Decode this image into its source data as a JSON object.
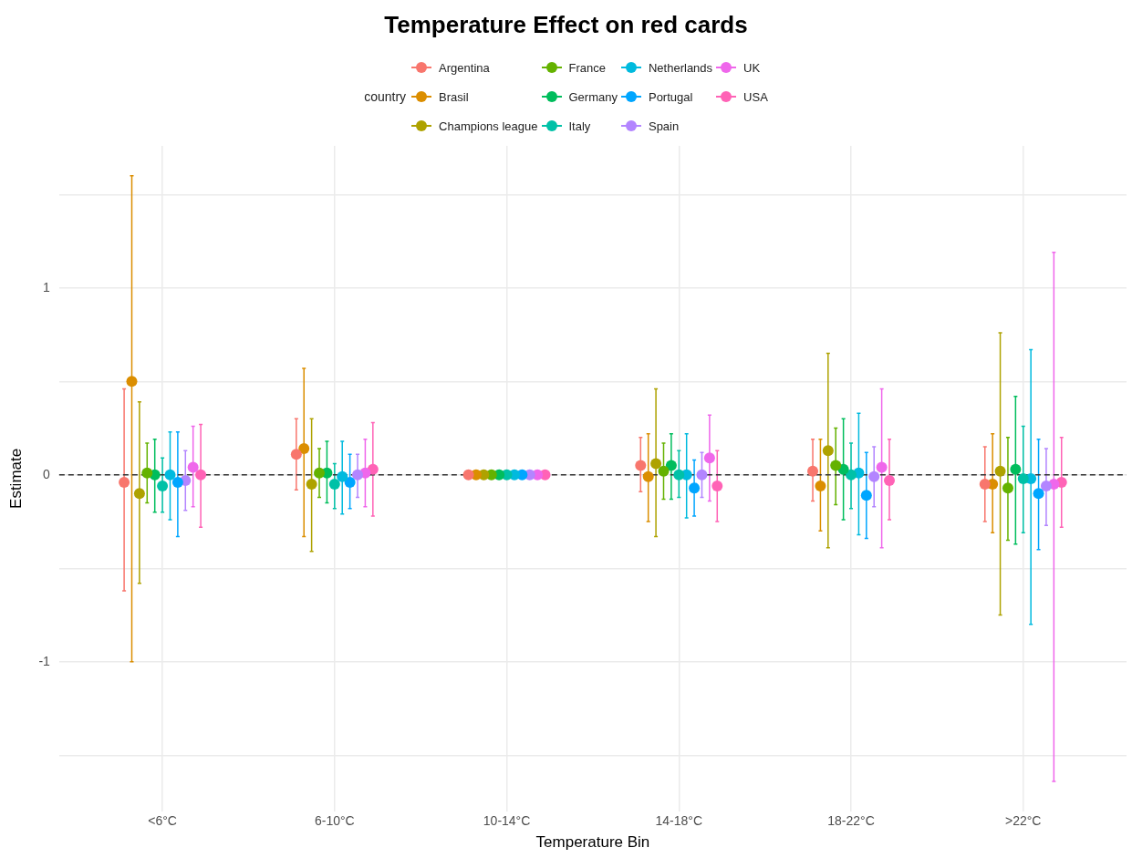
{
  "chart_data": {
    "type": "scatter",
    "title": "Temperature Effect on red cards",
    "xlabel": "Temperature Bin",
    "ylabel": "Estimate",
    "legend_title": "country",
    "categories": [
      "<6°C",
      "6-10°C",
      "10-14°C",
      "14-18°C",
      "18-22°C",
      ">22°C"
    ],
    "ylim": [
      -1.8,
      1.76
    ],
    "yticks": [
      {
        "value": -1.5,
        "label": null
      },
      -1,
      {
        "value": -0.5,
        "label": null
      },
      0,
      {
        "value": 0.5,
        "label": null
      },
      1,
      {
        "value": 1.5,
        "label": null
      }
    ],
    "grid": true,
    "legend": "top",
    "marker": "circle",
    "ref_lines": [
      {
        "axis": "y",
        "value": 0,
        "color": "#333333",
        "line_style": "dashed"
      }
    ],
    "series": [
      {
        "name": "Argentina",
        "color": "#f8766d",
        "values": [
          -0.04,
          0.11,
          0,
          0.05,
          0.02,
          -0.05
        ],
        "errors": [
          [
            -0.62,
            0.46
          ],
          [
            -0.08,
            0.3
          ],
          null,
          [
            -0.09,
            0.2
          ],
          [
            -0.14,
            0.19
          ],
          [
            -0.25,
            0.15
          ]
        ]
      },
      {
        "name": "Brasil",
        "color": "#db8e00",
        "values": [
          0.5,
          0.14,
          0,
          -0.01,
          -0.06,
          -0.05
        ],
        "errors": [
          [
            -1.0,
            1.6
          ],
          [
            -0.33,
            0.57
          ],
          null,
          [
            -0.25,
            0.22
          ],
          [
            -0.3,
            0.19
          ],
          [
            -0.31,
            0.22
          ]
        ]
      },
      {
        "name": "Champions league",
        "color": "#aea200",
        "values": [
          -0.1,
          -0.05,
          0,
          0.06,
          0.13,
          0.02
        ],
        "errors": [
          [
            -0.58,
            0.39
          ],
          [
            -0.41,
            0.3
          ],
          null,
          [
            -0.33,
            0.46
          ],
          [
            -0.39,
            0.65
          ],
          [
            -0.75,
            0.76
          ]
        ]
      },
      {
        "name": "France",
        "color": "#64b200",
        "values": [
          0.01,
          0.01,
          0,
          0.02,
          0.05,
          -0.07
        ],
        "errors": [
          [
            -0.15,
            0.17
          ],
          [
            -0.12,
            0.14
          ],
          null,
          [
            -0.13,
            0.17
          ],
          [
            -0.16,
            0.25
          ],
          [
            -0.35,
            0.2
          ]
        ]
      },
      {
        "name": "Germany",
        "color": "#00bd5c",
        "values": [
          0.0,
          0.01,
          0,
          0.05,
          0.03,
          0.03
        ],
        "errors": [
          [
            -0.2,
            0.19
          ],
          [
            -0.15,
            0.18
          ],
          null,
          [
            -0.13,
            0.22
          ],
          [
            -0.24,
            0.3
          ],
          [
            -0.37,
            0.42
          ]
        ]
      },
      {
        "name": "Italy",
        "color": "#00c1a7",
        "values": [
          -0.06,
          -0.05,
          0,
          0.0,
          0.0,
          -0.02
        ],
        "errors": [
          [
            -0.2,
            0.09
          ],
          [
            -0.18,
            0.06
          ],
          null,
          [
            -0.12,
            0.13
          ],
          [
            -0.18,
            0.17
          ],
          [
            -0.31,
            0.26
          ]
        ]
      },
      {
        "name": "Netherlands",
        "color": "#00bade",
        "values": [
          0.0,
          -0.01,
          0,
          0.0,
          0.01,
          -0.02
        ],
        "errors": [
          [
            -0.24,
            0.23
          ],
          [
            -0.21,
            0.18
          ],
          null,
          [
            -0.23,
            0.22
          ],
          [
            -0.32,
            0.33
          ],
          [
            -0.8,
            0.67
          ]
        ]
      },
      {
        "name": "Portugal",
        "color": "#00a6ff",
        "values": [
          -0.04,
          -0.04,
          0,
          -0.07,
          -0.11,
          -0.1
        ],
        "errors": [
          [
            -0.33,
            0.23
          ],
          [
            -0.18,
            0.11
          ],
          null,
          [
            -0.22,
            0.08
          ],
          [
            -0.34,
            0.12
          ],
          [
            -0.4,
            0.19
          ]
        ]
      },
      {
        "name": "Spain",
        "color": "#b385ff",
        "values": [
          -0.03,
          0.0,
          0,
          0.0,
          -0.01,
          -0.06
        ],
        "errors": [
          [
            -0.19,
            0.13
          ],
          [
            -0.12,
            0.11
          ],
          null,
          [
            -0.12,
            0.12
          ],
          [
            -0.17,
            0.15
          ],
          [
            -0.27,
            0.14
          ]
        ]
      },
      {
        "name": "UK",
        "color": "#ef67eb",
        "values": [
          0.04,
          0.01,
          0,
          0.09,
          0.04,
          -0.05
        ],
        "errors": [
          [
            -0.17,
            0.26
          ],
          [
            -0.17,
            0.19
          ],
          null,
          [
            -0.14,
            0.32
          ],
          [
            -0.39,
            0.46
          ],
          [
            -1.64,
            1.19
          ]
        ]
      },
      {
        "name": "USA",
        "color": "#ff63b6",
        "values": [
          0.0,
          0.03,
          0,
          -0.06,
          -0.03,
          -0.04
        ],
        "errors": [
          [
            -0.28,
            0.27
          ],
          [
            -0.22,
            0.28
          ],
          null,
          [
            -0.25,
            0.13
          ],
          [
            -0.24,
            0.19
          ],
          [
            -0.28,
            0.2
          ]
        ]
      }
    ]
  }
}
